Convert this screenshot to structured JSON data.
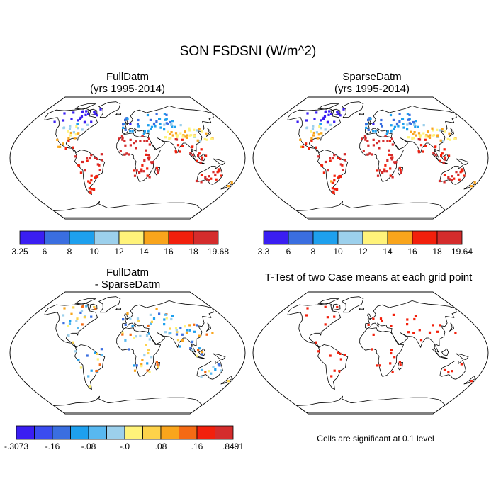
{
  "title": "SON FSDSNI (W/m^2)",
  "panels": [
    {
      "id": "p1",
      "title_line1": "FullDatm",
      "title_line2": "(yrs 1995-2014)"
    },
    {
      "id": "p2",
      "title_line1": "SparseDatm",
      "title_line2": "(yrs 1995-2014)"
    },
    {
      "id": "p3",
      "title_line1": "FullDatm",
      "title_line2": "- SparseDatm"
    },
    {
      "id": "p4",
      "title_line1": "T-Test of two Case means at each grid point",
      "title_line2": ""
    }
  ],
  "colorbars": [
    {
      "id": "cb1",
      "colors": [
        "#3a1ef2",
        "#3a6ee0",
        "#1ea0ee",
        "#9cd0ec",
        "#fff37a",
        "#f9a51c",
        "#f2200c",
        "#d42c2c"
      ],
      "labels": [
        "3.25",
        "6",
        "8",
        "10",
        "12",
        "14",
        "16",
        "18",
        "19.68"
      ]
    },
    {
      "id": "cb2",
      "colors": [
        "#3a1ef2",
        "#3a6ee0",
        "#1ea0ee",
        "#9cd0ec",
        "#fff37a",
        "#f9a51c",
        "#f2200c",
        "#d42c2c"
      ],
      "labels": [
        "3.3",
        "6",
        "8",
        "10",
        "12",
        "14",
        "16",
        "18",
        "19.64"
      ]
    },
    {
      "id": "cb3",
      "colors": [
        "#3a1ef2",
        "#3a4cf0",
        "#3a6ee0",
        "#1ea0ee",
        "#58b8f0",
        "#9cd0ec",
        "#fff37a",
        "#fdd24a",
        "#f9a51c",
        "#f46a14",
        "#f2200c",
        "#d42c2c"
      ],
      "labels": [
        "-.3073",
        "-.16",
        "-.08",
        "-.0",
        ".08",
        ".16",
        ".8491"
      ]
    }
  ],
  "footnote": "Cells are significant at 0.1 level"
}
